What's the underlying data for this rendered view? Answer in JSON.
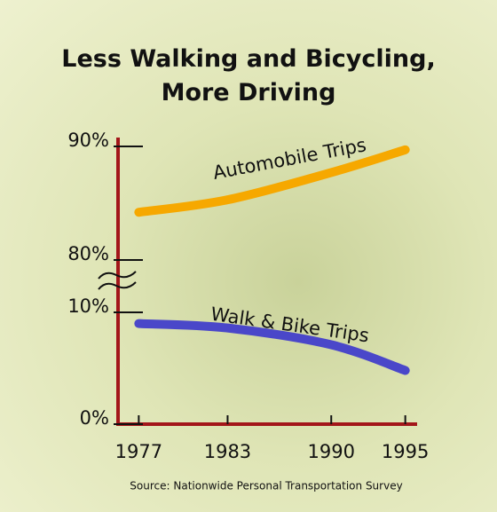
{
  "chart_data": {
    "type": "line",
    "title": "Less Walking and Bicycling, More Driving",
    "source": "Source: Nationwide Personal Transportation Survey",
    "x": [
      1977,
      1983,
      1990,
      1995
    ],
    "xlim": [
      1975.6,
      1995.8
    ],
    "xticks": [
      1977,
      1983,
      1990,
      1995
    ],
    "ylim": [
      0,
      90
    ],
    "y_break": [
      10,
      80
    ],
    "yticks": [
      {
        "value": 0,
        "label": "0%"
      },
      {
        "value": 10,
        "label": "10%"
      },
      {
        "value": 80,
        "label": "80%"
      },
      {
        "value": 90,
        "label": "90%"
      }
    ],
    "axis_color": "#a3161a",
    "series": [
      {
        "name": "Automobile Trips",
        "color": "#f6a800",
        "values": [
          84.2,
          85.3,
          87.7,
          89.7
        ]
      },
      {
        "name": "Walk & Bike Trips",
        "color": "#4a47c9",
        "values": [
          9.0,
          8.6,
          7.1,
          4.8
        ]
      }
    ]
  }
}
